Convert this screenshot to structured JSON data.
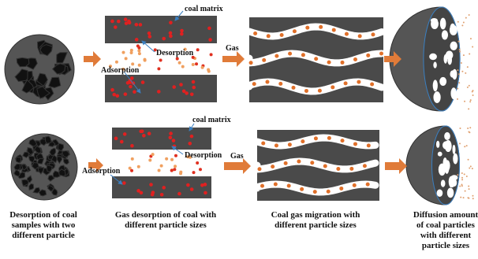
{
  "top": {
    "coal_matrix": "coal matrix",
    "desorption": "Desorption",
    "adsorption": "Adsorption",
    "gas": "Gas"
  },
  "bottom": {
    "coal_matrix": "coal matrix",
    "desorption": "Desorption",
    "adsorption": "Adsorption",
    "gas": "Gas"
  },
  "captions": [
    [
      "Desorption of coal",
      "samples  with two",
      "different particle"
    ],
    [
      "Gas desorption of coal with",
      "different particle sizes"
    ],
    [
      "Coal gas migration with",
      "different particle sizes"
    ],
    [
      "Diffusion amount",
      "of coal particles",
      "with different",
      "particle sizes"
    ]
  ]
}
